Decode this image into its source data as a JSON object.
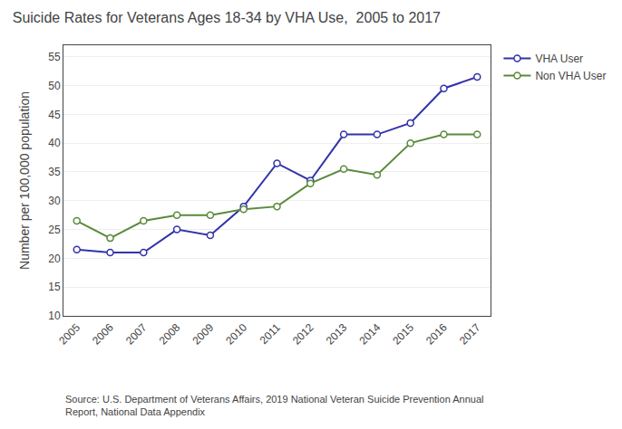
{
  "chart_data": {
    "type": "line",
    "title": "Suicide Rates for Veterans Ages 18-34 by VHA Use,  2005 to 2017",
    "y_label": "Number per 100,000 population",
    "annotations": [
      "Source: U.S. Department of Veterans Affairs, 2019 National Veteran Suicide Prevention Annual\nReport, National Data Appendix"
    ],
    "x": [
      2005,
      2006,
      2007,
      2008,
      2009,
      2010,
      2011,
      2012,
      2013,
      2014,
      2015,
      2016,
      2017
    ],
    "series": [
      {
        "name": "VHA User",
        "color": "#3333aa",
        "marker": "circle",
        "values": [
          21.5,
          21.0,
          21.0,
          25.0,
          24.0,
          29.0,
          36.5,
          33.5,
          41.5,
          41.5,
          43.5,
          49.5,
          51.5
        ]
      },
      {
        "name": "Non VHA User",
        "color": "#5a8a3a",
        "marker": "circle",
        "values": [
          26.5,
          23.5,
          26.5,
          27.5,
          27.5,
          28.5,
          29.0,
          33.0,
          35.5,
          34.5,
          40.0,
          41.5,
          41.5
        ]
      }
    ],
    "xlim": [
      2004.6,
      2017.4
    ],
    "xticks": [
      2005,
      2006,
      2007,
      2008,
      2009,
      2010,
      2011,
      2012,
      2013,
      2014,
      2015,
      2016,
      2017
    ],
    "ylim": [
      10,
      57
    ],
    "yticks": [
      10,
      15,
      20,
      25,
      30,
      35,
      40,
      45,
      50,
      55
    ],
    "grid": true,
    "legend": "right"
  }
}
